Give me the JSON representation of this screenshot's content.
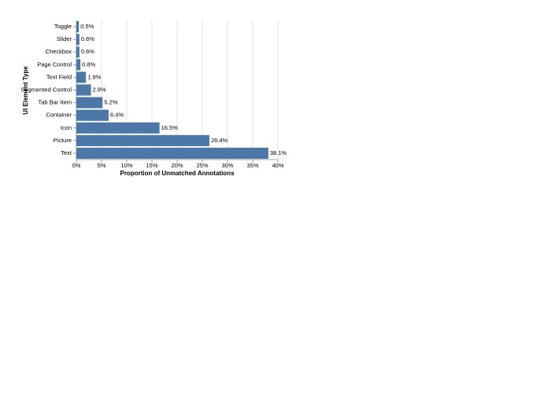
{
  "chart_data": {
    "type": "bar",
    "orientation": "horizontal",
    "x_label": "Proportion of Unmatched Annotations",
    "y_label": "UI Element Type",
    "categories": [
      "Toggle",
      "Slider",
      "Checkbox",
      "Page Control",
      "Text Field",
      "Segmented Control",
      "Tab Bar Item",
      "Container",
      "Icon",
      "Picture",
      "Text"
    ],
    "values": [
      0.5,
      0.6,
      0.6,
      0.8,
      1.9,
      2.9,
      5.2,
      6.4,
      16.5,
      26.4,
      38.1
    ],
    "value_labels": [
      "0.5%",
      "0.6%",
      "0.6%",
      "0.8%",
      "1.9%",
      "2.9%",
      "5.2%",
      "6.4%",
      "16.5%",
      "26.4%",
      "38.1%"
    ],
    "color": "#4c78a8",
    "xlim": [
      0,
      40
    ],
    "xticks": [
      {
        "value": 0,
        "label": "0%"
      },
      {
        "value": 5,
        "label": "5%"
      },
      {
        "value": 10,
        "label": "10%"
      },
      {
        "value": 15,
        "label": "15%"
      },
      {
        "value": 20,
        "label": "20%"
      },
      {
        "value": 25,
        "label": "25%"
      },
      {
        "value": 30,
        "label": "30%"
      },
      {
        "value": 35,
        "label": "35%"
      },
      {
        "value": 40,
        "label": "40%"
      }
    ],
    "grid": true
  }
}
